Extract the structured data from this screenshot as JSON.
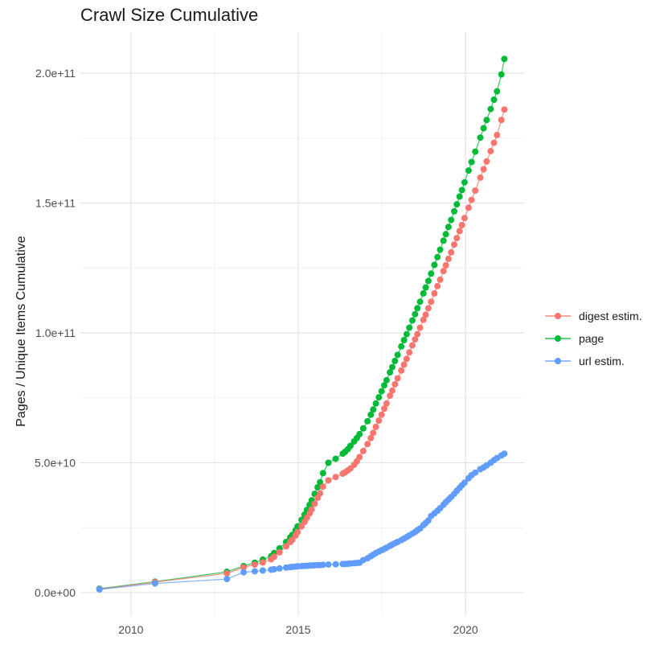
{
  "title": "Crawl Size Cumulative",
  "axes": {
    "y_title": "Pages / Unique Items Cumulative",
    "x_tick_labels": [
      "2010",
      "2015",
      "2020"
    ],
    "x_tick_years": [
      2010,
      2015,
      2020
    ],
    "x_minor_years": [
      2012.5,
      2017.5
    ],
    "y_tick_labels": [
      "0.0e+00",
      "5.0e+10",
      "1.0e+11",
      "1.5e+11",
      "2.0e+11"
    ],
    "y_tick_values_e10": [
      0,
      5,
      10,
      15,
      20
    ],
    "y_minor_values_e10": [
      2.5,
      7.5,
      12.5,
      17.5
    ]
  },
  "legend": {
    "position": "right",
    "items": [
      {
        "label": "digest estim.",
        "color": "#F8766D"
      },
      {
        "label": "page",
        "color": "#00BA38"
      },
      {
        "label": "url estim.",
        "color": "#619CFF"
      }
    ]
  },
  "colors": {
    "background": "#FFFFFF",
    "grid_major": "#E4E4E4",
    "grid_minor": "#F2F2F2",
    "axis_text": "#4D4D4D",
    "title_text": "#1A1A1A"
  },
  "chart_data": {
    "type": "line",
    "title": "Crawl Size Cumulative",
    "xlabel": "",
    "ylabel": "Pages / Unique Items Cumulative",
    "xlim": [
      2008.49,
      2021.75
    ],
    "ylim_e10": [
      -0.9,
      21.58
    ],
    "values_unit": "pages (values in units of 1e10)",
    "grid": true,
    "legend_position": "right",
    "marker": "point",
    "draw_order": [
      1,
      0,
      2
    ],
    "x_years": [
      2009.06,
      2010.72,
      2012.87,
      2013.37,
      2013.7,
      2013.94,
      2014.19,
      2014.28,
      2014.44,
      2014.64,
      2014.76,
      2014.82,
      2014.92,
      2014.98,
      2015.1,
      2015.19,
      2015.26,
      2015.34,
      2015.4,
      2015.49,
      2015.58,
      2015.65,
      2015.74,
      2015.9,
      2016.12,
      2016.33,
      2016.4,
      2016.48,
      2016.56,
      2016.67,
      2016.75,
      2016.83,
      2016.94,
      2017.07,
      2017.17,
      2017.24,
      2017.32,
      2017.41,
      2017.49,
      2017.57,
      2017.64,
      2017.74,
      2017.81,
      2017.89,
      2017.97,
      2018.08,
      2018.16,
      2018.24,
      2018.32,
      2018.41,
      2018.49,
      2018.56,
      2018.64,
      2018.74,
      2018.81,
      2018.89,
      2018.97,
      2019.07,
      2019.16,
      2019.24,
      2019.34,
      2019.41,
      2019.49,
      2019.57,
      2019.66,
      2019.74,
      2019.82,
      2019.89,
      2019.97,
      2020.09,
      2020.18,
      2020.29,
      2020.44,
      2020.54,
      2020.63,
      2020.75,
      2020.85,
      2020.94,
      2021.07,
      2021.16
    ],
    "series": [
      {
        "name": "digest estim.",
        "color": "#F8766D",
        "values_e10": [
          0.13,
          0.4,
          0.74,
          0.97,
          1.08,
          1.16,
          1.28,
          1.38,
          1.55,
          1.78,
          1.95,
          2.03,
          2.2,
          2.33,
          2.55,
          2.72,
          2.88,
          3.05,
          3.2,
          3.42,
          3.65,
          3.82,
          4.08,
          4.32,
          4.45,
          4.58,
          4.63,
          4.7,
          4.78,
          4.92,
          5.05,
          5.22,
          5.45,
          5.72,
          5.95,
          6.15,
          6.38,
          6.62,
          6.85,
          7.08,
          7.28,
          7.58,
          7.78,
          8.02,
          8.25,
          8.55,
          8.78,
          9.0,
          9.25,
          9.52,
          9.75,
          9.95,
          10.2,
          10.5,
          10.7,
          10.95,
          11.2,
          11.52,
          11.8,
          12.05,
          12.38,
          12.6,
          12.85,
          13.1,
          13.4,
          13.65,
          13.92,
          14.15,
          14.42,
          14.82,
          15.12,
          15.48,
          15.98,
          16.3,
          16.6,
          17.0,
          17.32,
          17.62,
          18.2,
          18.6
        ]
      },
      {
        "name": "page",
        "color": "#00BA38",
        "values_e10": [
          0.15,
          0.42,
          0.8,
          1.02,
          1.15,
          1.27,
          1.4,
          1.52,
          1.7,
          1.95,
          2.12,
          2.22,
          2.4,
          2.55,
          2.8,
          3.0,
          3.18,
          3.38,
          3.55,
          3.8,
          4.05,
          4.25,
          4.6,
          5.0,
          5.15,
          5.35,
          5.42,
          5.52,
          5.65,
          5.82,
          5.95,
          6.1,
          6.32,
          6.6,
          6.85,
          7.05,
          7.28,
          7.52,
          7.75,
          7.98,
          8.18,
          8.48,
          8.68,
          8.92,
          9.15,
          9.48,
          9.72,
          9.95,
          10.2,
          10.48,
          10.72,
          10.95,
          11.2,
          11.52,
          11.75,
          12.0,
          12.28,
          12.62,
          12.92,
          13.2,
          13.55,
          13.8,
          14.08,
          14.35,
          14.68,
          14.95,
          15.25,
          15.5,
          15.8,
          16.25,
          16.58,
          16.98,
          17.52,
          17.88,
          18.2,
          18.62,
          18.98,
          19.3,
          19.95,
          20.55
        ]
      },
      {
        "name": "url estim.",
        "color": "#619CFF",
        "values_e10": [
          0.12,
          0.35,
          0.52,
          0.78,
          0.82,
          0.85,
          0.88,
          0.9,
          0.93,
          0.96,
          0.98,
          0.99,
          1.0,
          1.01,
          1.02,
          1.03,
          1.03,
          1.04,
          1.04,
          1.05,
          1.06,
          1.06,
          1.07,
          1.08,
          1.09,
          1.1,
          1.1,
          1.11,
          1.12,
          1.13,
          1.14,
          1.15,
          1.25,
          1.32,
          1.4,
          1.46,
          1.52,
          1.58,
          1.63,
          1.68,
          1.73,
          1.8,
          1.85,
          1.9,
          1.95,
          2.02,
          2.08,
          2.14,
          2.2,
          2.27,
          2.33,
          2.4,
          2.47,
          2.6,
          2.68,
          2.78,
          2.95,
          3.05,
          3.15,
          3.25,
          3.38,
          3.48,
          3.58,
          3.68,
          3.8,
          3.92,
          4.03,
          4.13,
          4.23,
          4.4,
          4.52,
          4.62,
          4.75,
          4.82,
          4.9,
          5.0,
          5.1,
          5.18,
          5.28,
          5.35
        ]
      }
    ]
  }
}
